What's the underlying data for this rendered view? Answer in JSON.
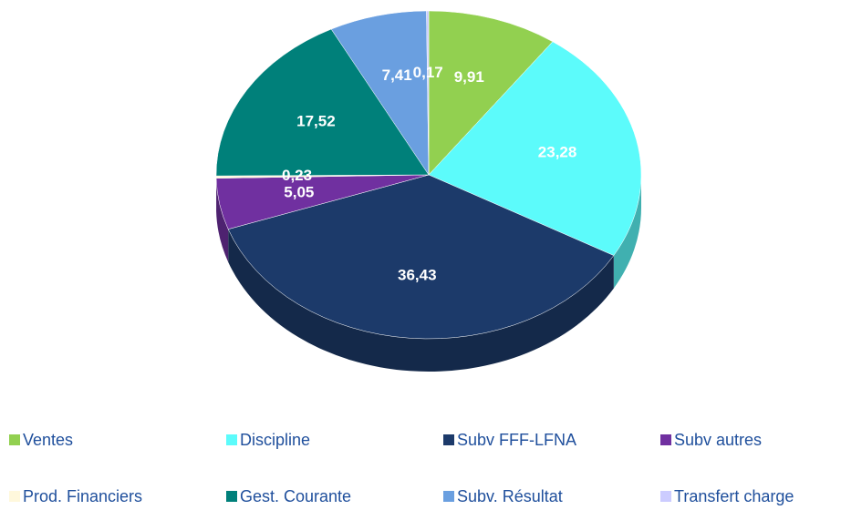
{
  "chart_data": {
    "type": "pie",
    "categories": [
      "Ventes",
      "Discipline",
      "Subv FFF-LFNA",
      "Subv autres",
      "Prod. Financiers",
      "Gest. Courante",
      "Subv. Résultat",
      "Transfert charge"
    ],
    "values": [
      9.91,
      23.28,
      36.43,
      5.05,
      0.23,
      17.52,
      7.41,
      0.17
    ],
    "value_labels": [
      "9,91",
      "23,28",
      "36,43",
      "5,05",
      "0,23",
      "17,52",
      "7,41",
      "0,17"
    ],
    "colors": [
      "#92d050",
      "#5cfbfb",
      "#1c3a6a",
      "#7030a0",
      "#fff8dc",
      "#00807a",
      "#6a9fe0",
      "#ccccff"
    ],
    "legend": "bottom"
  }
}
